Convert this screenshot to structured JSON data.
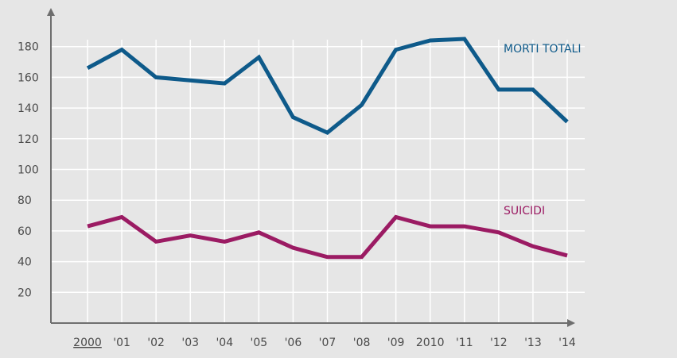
{
  "chart_data": {
    "type": "line",
    "title": "",
    "xlabel": "",
    "ylabel": "",
    "categories": [
      "2000",
      "'01",
      "'02",
      "'03",
      "'04",
      "'05",
      "'06",
      "'07",
      "'08",
      "'09",
      "2010",
      "'11",
      "'12",
      "'13",
      "'14"
    ],
    "yticks": [
      "20",
      "40",
      "60",
      "80",
      "100",
      "120",
      "140",
      "160",
      "180"
    ],
    "ylim": [
      0,
      195
    ],
    "grid": true,
    "series": [
      {
        "name": "MORTI TOTALI",
        "color": "#0e5a8a",
        "values": [
          166,
          178,
          160,
          158,
          156,
          173,
          134,
          124,
          142,
          178,
          184,
          185,
          152,
          152,
          131
        ]
      },
      {
        "name": "SUICIDI",
        "color": "#9b1b63",
        "values": [
          63,
          69,
          53,
          57,
          53,
          59,
          49,
          43,
          43,
          69,
          63,
          63,
          59,
          50,
          44
        ]
      }
    ]
  }
}
